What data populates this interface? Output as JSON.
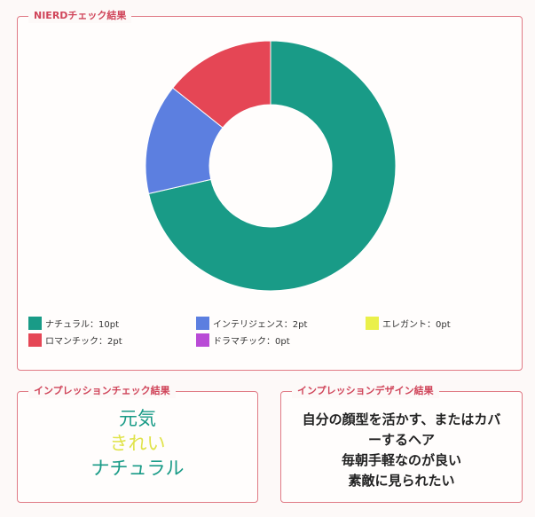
{
  "nierd": {
    "title": "NIERDチェック結果"
  },
  "chart_data": {
    "type": "pie",
    "donut": true,
    "title": "",
    "categories": [
      "ナチュラル",
      "インテリジェンス",
      "エレガント",
      "ロマンチック",
      "ドラマチック"
    ],
    "values": [
      10,
      2,
      0,
      2,
      0
    ],
    "colors": [
      "#199b87",
      "#5c7fe0",
      "#eaf04a",
      "#e54655",
      "#b94bd6"
    ],
    "legend": [
      {
        "label": "ナチュラル：10pt",
        "color": "#199b87"
      },
      {
        "label": "インテリジェンス：2pt",
        "color": "#5c7fe0"
      },
      {
        "label": "エレガント：0pt",
        "color": "#eaf04a"
      },
      {
        "label": "ロマンチック：2pt",
        "color": "#e54655"
      },
      {
        "label": "ドラマチック：0pt",
        "color": "#b94bd6"
      }
    ],
    "legend_position": "bottom"
  },
  "impression": {
    "title": "インプレッションチェック結果",
    "words": [
      {
        "text": "元気",
        "color": "#199b87"
      },
      {
        "text": "きれい",
        "color": "#e0e34a"
      },
      {
        "text": "ナチュラル",
        "color": "#199b87"
      }
    ]
  },
  "design": {
    "title": "インプレッションデザイン結果",
    "lines": [
      "自分の顔型を活かす、またはカバ",
      "ーするヘア",
      "毎朝手軽なのが良い",
      "素敵に見られたい"
    ]
  }
}
